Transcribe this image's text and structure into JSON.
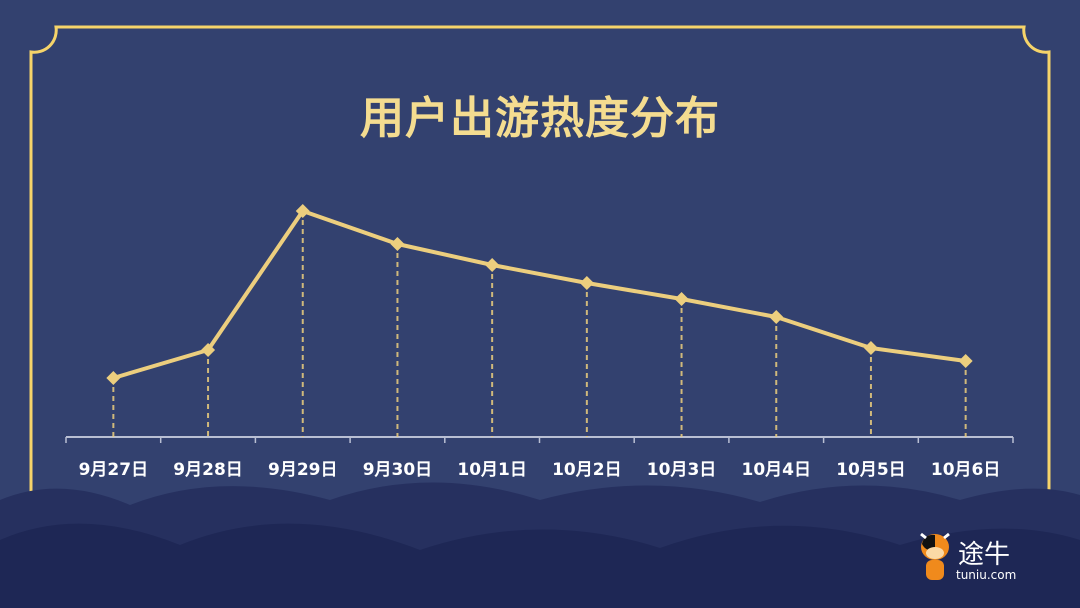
{
  "title": "用户出游热度分布",
  "colors": {
    "background": "#33416f",
    "frame": "#f6d46a",
    "line": "#ecce7e",
    "cloud_dark": "#1e2755",
    "axis": "#b9bfd3"
  },
  "chart_data": {
    "type": "line",
    "title": "用户出游热度分布",
    "categories": [
      "9月27日",
      "9月28日",
      "9月29日",
      "9月30日",
      "10月1日",
      "10月2日",
      "10月3日",
      "10月4日",
      "10月5日",
      "10月6日"
    ],
    "values": [
      59,
      87,
      226,
      193,
      172,
      154,
      138,
      120,
      89,
      76
    ],
    "y_axis_shown": false,
    "ylim": [
      0,
      240
    ],
    "grid": false,
    "markers": "diamond",
    "drop_lines": "dashed"
  },
  "logo": {
    "cn": "途牛",
    "en": "tuniu.com",
    "icon": "cow-mascot-icon"
  }
}
